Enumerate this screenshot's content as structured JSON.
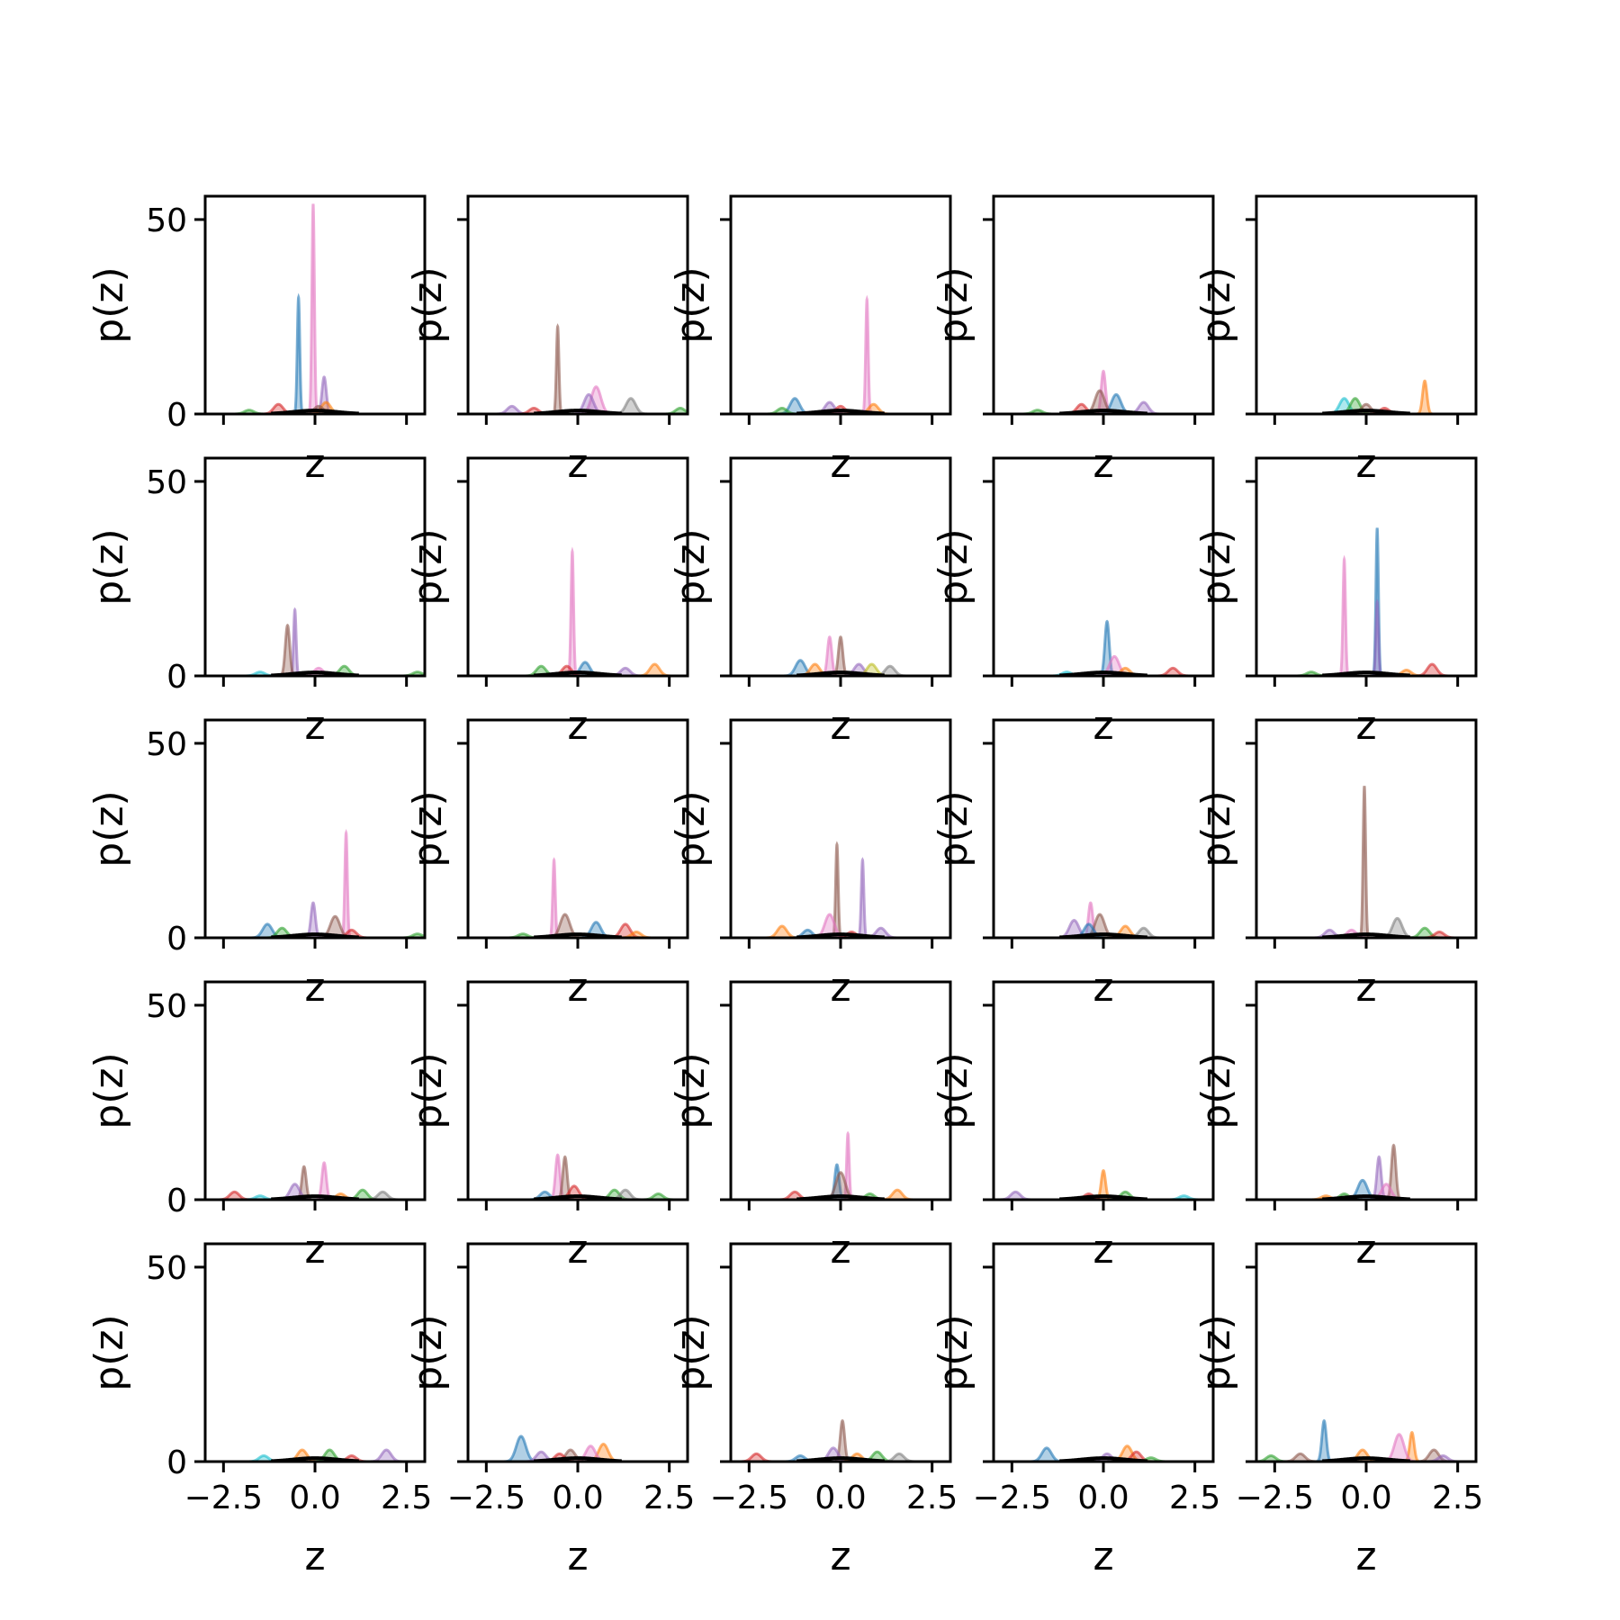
{
  "figure": {
    "rows": 5,
    "cols": 5,
    "sharey": true,
    "xlabel": "z",
    "ylabel": "p(z)"
  },
  "chart_data": {
    "type": "area",
    "description_free": true,
    "xlim": [
      -3,
      3
    ],
    "ylim": [
      0,
      56
    ],
    "xticks": [
      -2.5,
      0.0,
      2.5
    ],
    "xtick_labels": [
      "−2.5",
      "0.0",
      "2.5"
    ],
    "yticks": [
      0,
      50
    ],
    "ytick_labels": [
      "0",
      "50"
    ],
    "xlabel": "z",
    "ylabel": "p(z)",
    "grid": false,
    "colors": [
      "#1f77b4",
      "#ff7f0e",
      "#2ca02c",
      "#d62728",
      "#9467bd",
      "#8c564b",
      "#e377c2",
      "#7f7f7f",
      "#bcbd22",
      "#17becf"
    ],
    "panels": [
      [
        {
          "c": "#e377c2",
          "mu": -0.05,
          "h": 54
        },
        {
          "c": "#1f77b4",
          "mu": -0.45,
          "h": 30
        },
        {
          "c": "#9467bd",
          "mu": 0.25,
          "h": 9.5
        },
        {
          "c": "#d62728",
          "mu": -1.0,
          "h": 2.5
        },
        {
          "c": "#2ca02c",
          "mu": -1.8,
          "h": 1
        },
        {
          "c": "#ff7f0e",
          "mu": 0.3,
          "h": 3
        },
        {
          "c": "#8c564b",
          "mu": 0.1,
          "h": 2
        }
      ],
      [
        {
          "c": "#8c564b",
          "mu": -0.55,
          "h": 22.5
        },
        {
          "c": "#e377c2",
          "mu": 0.5,
          "h": 7
        },
        {
          "c": "#9467bd",
          "mu": 0.3,
          "h": 5
        },
        {
          "c": "#7f7f7f",
          "mu": 1.45,
          "h": 4
        },
        {
          "c": "#9467bd",
          "mu": -1.8,
          "h": 2
        },
        {
          "c": "#d62728",
          "mu": -1.2,
          "h": 1.5
        },
        {
          "c": "#2ca02c",
          "mu": 2.8,
          "h": 1.5
        }
      ],
      [
        {
          "c": "#e377c2",
          "mu": 0.72,
          "h": 29.5
        },
        {
          "c": "#1f77b4",
          "mu": -1.25,
          "h": 4
        },
        {
          "c": "#9467bd",
          "mu": -0.3,
          "h": 3
        },
        {
          "c": "#ff7f0e",
          "mu": 0.9,
          "h": 2.5
        },
        {
          "c": "#2ca02c",
          "mu": -1.6,
          "h": 1.5
        },
        {
          "c": "#d62728",
          "mu": 0.0,
          "h": 2
        }
      ],
      [
        {
          "c": "#e377c2",
          "mu": 0.0,
          "h": 11
        },
        {
          "c": "#1f77b4",
          "mu": 0.35,
          "h": 5
        },
        {
          "c": "#9467bd",
          "mu": 1.1,
          "h": 3
        },
        {
          "c": "#d62728",
          "mu": -0.6,
          "h": 2.5
        },
        {
          "c": "#8c564b",
          "mu": -0.1,
          "h": 6
        },
        {
          "c": "#2ca02c",
          "mu": -1.8,
          "h": 1
        }
      ],
      [
        {
          "c": "#ff7f0e",
          "mu": 1.6,
          "h": 8.5
        },
        {
          "c": "#17becf",
          "mu": -0.6,
          "h": 4
        },
        {
          "c": "#2ca02c",
          "mu": -0.3,
          "h": 4
        },
        {
          "c": "#8c564b",
          "mu": 0.0,
          "h": 2.5
        },
        {
          "c": "#d62728",
          "mu": 0.5,
          "h": 1.5
        }
      ],
      [
        {
          "c": "#9467bd",
          "mu": -0.55,
          "h": 17
        },
        {
          "c": "#8c564b",
          "mu": -0.75,
          "h": 13
        },
        {
          "c": "#2ca02c",
          "mu": 0.8,
          "h": 2.5
        },
        {
          "c": "#e377c2",
          "mu": 0.1,
          "h": 2
        },
        {
          "c": "#17becf",
          "mu": -1.5,
          "h": 1
        },
        {
          "c": "#2ca02c",
          "mu": 2.8,
          "h": 1
        }
      ],
      [
        {
          "c": "#e377c2",
          "mu": -0.15,
          "h": 32
        },
        {
          "c": "#1f77b4",
          "mu": 0.2,
          "h": 3.5
        },
        {
          "c": "#2ca02c",
          "mu": -1.0,
          "h": 2.5
        },
        {
          "c": "#ff7f0e",
          "mu": 2.1,
          "h": 3
        },
        {
          "c": "#9467bd",
          "mu": 1.3,
          "h": 2
        },
        {
          "c": "#d62728",
          "mu": -0.3,
          "h": 2.5
        }
      ],
      [
        {
          "c": "#e377c2",
          "mu": -0.3,
          "h": 10
        },
        {
          "c": "#8c564b",
          "mu": 0.0,
          "h": 10
        },
        {
          "c": "#1f77b4",
          "mu": -1.1,
          "h": 4
        },
        {
          "c": "#ff7f0e",
          "mu": -0.7,
          "h": 3
        },
        {
          "c": "#9467bd",
          "mu": 0.5,
          "h": 3
        },
        {
          "c": "#7f7f7f",
          "mu": 1.35,
          "h": 2.5
        },
        {
          "c": "#bcbd22",
          "mu": 0.85,
          "h": 3
        }
      ],
      [
        {
          "c": "#1f77b4",
          "mu": 0.1,
          "h": 14
        },
        {
          "c": "#e377c2",
          "mu": 0.3,
          "h": 5
        },
        {
          "c": "#d62728",
          "mu": 1.9,
          "h": 2
        },
        {
          "c": "#ff7f0e",
          "mu": 0.6,
          "h": 2
        },
        {
          "c": "#17becf",
          "mu": -1.0,
          "h": 1
        }
      ],
      [
        {
          "c": "#1f77b4",
          "mu": 0.3,
          "h": 38
        },
        {
          "c": "#e377c2",
          "mu": -0.6,
          "h": 30
        },
        {
          "c": "#9467bd",
          "mu": 0.3,
          "h": 19
        },
        {
          "c": "#d62728",
          "mu": 1.8,
          "h": 3
        },
        {
          "c": "#ff7f0e",
          "mu": 1.1,
          "h": 1.5
        },
        {
          "c": "#2ca02c",
          "mu": -1.5,
          "h": 1
        }
      ],
      [
        {
          "c": "#e377c2",
          "mu": 0.85,
          "h": 27
        },
        {
          "c": "#9467bd",
          "mu": -0.05,
          "h": 9
        },
        {
          "c": "#1f77b4",
          "mu": -1.3,
          "h": 3.5
        },
        {
          "c": "#2ca02c",
          "mu": -0.9,
          "h": 2.5
        },
        {
          "c": "#8c564b",
          "mu": 0.55,
          "h": 5.5
        },
        {
          "c": "#d62728",
          "mu": 1.0,
          "h": 2
        },
        {
          "c": "#2ca02c",
          "mu": 2.8,
          "h": 1
        }
      ],
      [
        {
          "c": "#e377c2",
          "mu": -0.65,
          "h": 20
        },
        {
          "c": "#8c564b",
          "mu": -0.35,
          "h": 6
        },
        {
          "c": "#1f77b4",
          "mu": 0.5,
          "h": 4
        },
        {
          "c": "#d62728",
          "mu": 1.3,
          "h": 3.5
        },
        {
          "c": "#ff7f0e",
          "mu": 1.6,
          "h": 1.5
        },
        {
          "c": "#2ca02c",
          "mu": -1.5,
          "h": 1
        }
      ],
      [
        {
          "c": "#8c564b",
          "mu": -0.1,
          "h": 24
        },
        {
          "c": "#9467bd",
          "mu": 0.6,
          "h": 20
        },
        {
          "c": "#e377c2",
          "mu": -0.3,
          "h": 6
        },
        {
          "c": "#ff7f0e",
          "mu": -1.6,
          "h": 3
        },
        {
          "c": "#1f77b4",
          "mu": -0.9,
          "h": 2
        },
        {
          "c": "#9467bd",
          "mu": 1.1,
          "h": 2.5
        },
        {
          "c": "#d62728",
          "mu": 0.3,
          "h": 1.5
        }
      ],
      [
        {
          "c": "#e377c2",
          "mu": -0.35,
          "h": 9
        },
        {
          "c": "#9467bd",
          "mu": -0.8,
          "h": 4.5
        },
        {
          "c": "#8c564b",
          "mu": -0.1,
          "h": 6
        },
        {
          "c": "#1f77b4",
          "mu": -0.4,
          "h": 3.5
        },
        {
          "c": "#ff7f0e",
          "mu": 0.6,
          "h": 3
        },
        {
          "c": "#7f7f7f",
          "mu": 1.1,
          "h": 2.5
        }
      ],
      [
        {
          "c": "#8c564b",
          "mu": -0.05,
          "h": 39
        },
        {
          "c": "#7f7f7f",
          "mu": 0.85,
          "h": 5
        },
        {
          "c": "#2ca02c",
          "mu": 1.6,
          "h": 2.5
        },
        {
          "c": "#9467bd",
          "mu": -1.0,
          "h": 2
        },
        {
          "c": "#d62728",
          "mu": 2.0,
          "h": 1.5
        },
        {
          "c": "#e377c2",
          "mu": -0.4,
          "h": 2
        }
      ],
      [
        {
          "c": "#e377c2",
          "mu": 0.25,
          "h": 9.5
        },
        {
          "c": "#8c564b",
          "mu": -0.3,
          "h": 8.5
        },
        {
          "c": "#9467bd",
          "mu": -0.55,
          "h": 4
        },
        {
          "c": "#2ca02c",
          "mu": 1.3,
          "h": 2.5
        },
        {
          "c": "#7f7f7f",
          "mu": 1.85,
          "h": 2
        },
        {
          "c": "#d62728",
          "mu": -2.2,
          "h": 2
        },
        {
          "c": "#17becf",
          "mu": -1.5,
          "h": 1
        },
        {
          "c": "#ff7f0e",
          "mu": 0.7,
          "h": 1.5
        }
      ],
      [
        {
          "c": "#e377c2",
          "mu": -0.55,
          "h": 11.5
        },
        {
          "c": "#8c564b",
          "mu": -0.35,
          "h": 11
        },
        {
          "c": "#d62728",
          "mu": -0.1,
          "h": 3.5
        },
        {
          "c": "#1f77b4",
          "mu": -0.9,
          "h": 2
        },
        {
          "c": "#2ca02c",
          "mu": 1.0,
          "h": 2.5
        },
        {
          "c": "#7f7f7f",
          "mu": 1.3,
          "h": 2.5
        },
        {
          "c": "#2ca02c",
          "mu": 2.2,
          "h": 1.5
        }
      ],
      [
        {
          "c": "#e377c2",
          "mu": 0.2,
          "h": 17
        },
        {
          "c": "#1f77b4",
          "mu": -0.1,
          "h": 9
        },
        {
          "c": "#8c564b",
          "mu": 0.0,
          "h": 7
        },
        {
          "c": "#ff7f0e",
          "mu": 1.55,
          "h": 2.5
        },
        {
          "c": "#d62728",
          "mu": -1.25,
          "h": 2
        },
        {
          "c": "#2ca02c",
          "mu": 0.8,
          "h": 1.5
        }
      ],
      [
        {
          "c": "#ff7f0e",
          "mu": 0.0,
          "h": 7.5
        },
        {
          "c": "#9467bd",
          "mu": -2.4,
          "h": 2
        },
        {
          "c": "#2ca02c",
          "mu": 0.6,
          "h": 2
        },
        {
          "c": "#d62728",
          "mu": -0.4,
          "h": 1.5
        },
        {
          "c": "#17becf",
          "mu": 2.2,
          "h": 1
        }
      ],
      [
        {
          "c": "#8c564b",
          "mu": 0.75,
          "h": 14
        },
        {
          "c": "#9467bd",
          "mu": 0.35,
          "h": 11
        },
        {
          "c": "#1f77b4",
          "mu": -0.1,
          "h": 5
        },
        {
          "c": "#e377c2",
          "mu": 0.55,
          "h": 4
        },
        {
          "c": "#2ca02c",
          "mu": -0.6,
          "h": 1.5
        },
        {
          "c": "#ff7f0e",
          "mu": -1.1,
          "h": 1
        }
      ],
      [
        {
          "c": "#9467bd",
          "mu": 1.95,
          "h": 3
        },
        {
          "c": "#ff7f0e",
          "mu": -0.35,
          "h": 3
        },
        {
          "c": "#2ca02c",
          "mu": 0.4,
          "h": 3
        },
        {
          "c": "#17becf",
          "mu": -1.4,
          "h": 1.5
        },
        {
          "c": "#d62728",
          "mu": 1.0,
          "h": 1.5
        }
      ],
      [
        {
          "c": "#1f77b4",
          "mu": -1.55,
          "h": 6.5
        },
        {
          "c": "#ff7f0e",
          "mu": 0.7,
          "h": 4.5
        },
        {
          "c": "#e377c2",
          "mu": 0.35,
          "h": 4
        },
        {
          "c": "#9467bd",
          "mu": -1.0,
          "h": 2.5
        },
        {
          "c": "#8c564b",
          "mu": -0.2,
          "h": 3
        },
        {
          "c": "#d62728",
          "mu": -0.5,
          "h": 2
        }
      ],
      [
        {
          "c": "#8c564b",
          "mu": 0.05,
          "h": 10.5
        },
        {
          "c": "#d62728",
          "mu": -2.3,
          "h": 2
        },
        {
          "c": "#9467bd",
          "mu": -0.2,
          "h": 3.5
        },
        {
          "c": "#2ca02c",
          "mu": 1.0,
          "h": 2.5
        },
        {
          "c": "#7f7f7f",
          "mu": 1.6,
          "h": 2
        },
        {
          "c": "#1f77b4",
          "mu": -1.1,
          "h": 1.5
        },
        {
          "c": "#ff7f0e",
          "mu": 0.45,
          "h": 2
        }
      ],
      [
        {
          "c": "#ff7f0e",
          "mu": 0.65,
          "h": 4
        },
        {
          "c": "#1f77b4",
          "mu": -1.55,
          "h": 3.5
        },
        {
          "c": "#9467bd",
          "mu": 0.1,
          "h": 2
        },
        {
          "c": "#d62728",
          "mu": 0.9,
          "h": 2.5
        },
        {
          "c": "#2ca02c",
          "mu": 1.3,
          "h": 1
        }
      ],
      [
        {
          "c": "#1f77b4",
          "mu": -1.15,
          "h": 10.5
        },
        {
          "c": "#ff7f0e",
          "mu": 1.25,
          "h": 7.5
        },
        {
          "c": "#e377c2",
          "mu": 0.9,
          "h": 7
        },
        {
          "c": "#8c564b",
          "mu": 1.85,
          "h": 3
        },
        {
          "c": "#ff7f0e",
          "mu": -0.1,
          "h": 3
        },
        {
          "c": "#2ca02c",
          "mu": -2.6,
          "h": 1.5
        },
        {
          "c": "#8c564b",
          "mu": -1.8,
          "h": 2
        },
        {
          "c": "#9467bd",
          "mu": 2.1,
          "h": 1.5
        }
      ]
    ]
  }
}
